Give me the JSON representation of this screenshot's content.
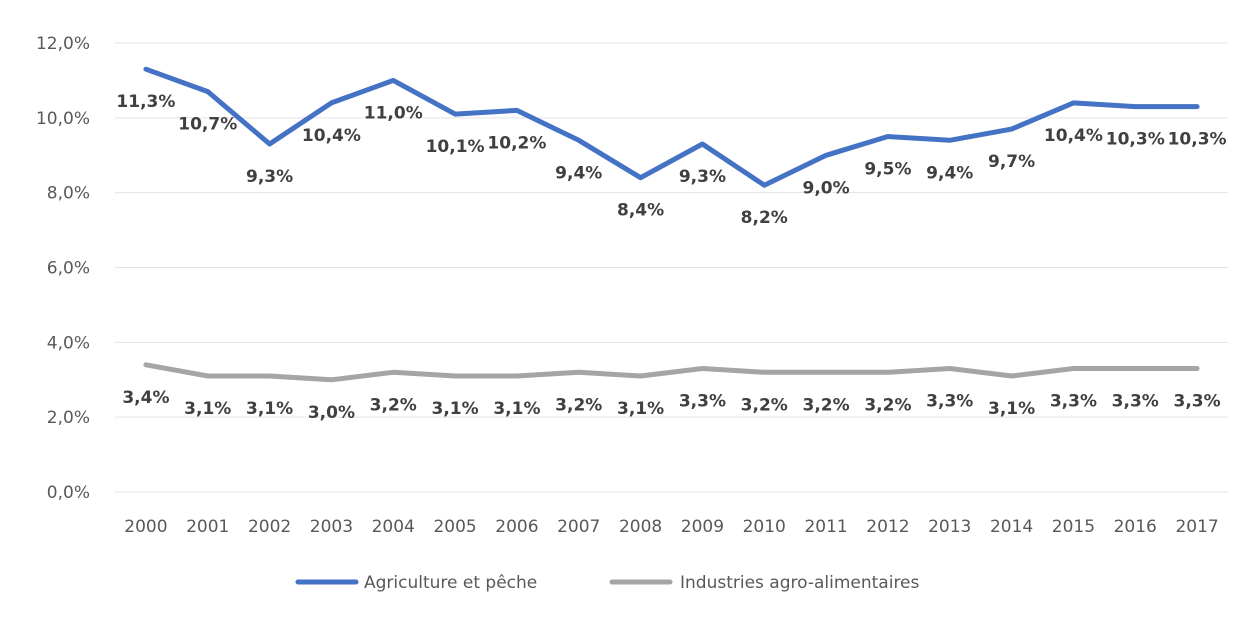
{
  "chart_data": {
    "type": "line",
    "title": "",
    "xlabel": "",
    "ylabel": "",
    "categories": [
      "2000",
      "2001",
      "2002",
      "2003",
      "2004",
      "2005",
      "2006",
      "2007",
      "2008",
      "2009",
      "2010",
      "2011",
      "2012",
      "2013",
      "2014",
      "2015",
      "2016",
      "2017"
    ],
    "ylim": [
      0,
      12
    ],
    "yticks": [
      0,
      2,
      4,
      6,
      8,
      10,
      12
    ],
    "ytick_labels": [
      "0,0%",
      "2,0%",
      "4,0%",
      "6,0%",
      "8,0%",
      "10,0%",
      "12,0%"
    ],
    "grid": true,
    "legend_position": "bottom",
    "series": [
      {
        "name": "Agriculture et pêche",
        "color": "#4472c4",
        "values": [
          11.3,
          10.7,
          9.3,
          10.4,
          11.0,
          10.1,
          10.2,
          9.4,
          8.4,
          9.3,
          8.2,
          9.0,
          9.5,
          9.4,
          9.7,
          10.4,
          10.3,
          10.3
        ],
        "labels": [
          "11,3%",
          "10,7%",
          "9,3%",
          "10,4%",
          "11,0%",
          "10,1%",
          "10,2%",
          "9,4%",
          "8,4%",
          "9,3%",
          "8,2%",
          "9,0%",
          "9,5%",
          "9,4%",
          "9,7%",
          "10,4%",
          "10,3%",
          "10,3%"
        ]
      },
      {
        "name": "Industries agro-alimentaires",
        "color": "#a5a5a5",
        "values": [
          3.4,
          3.1,
          3.1,
          3.0,
          3.2,
          3.1,
          3.1,
          3.2,
          3.1,
          3.3,
          3.2,
          3.2,
          3.2,
          3.3,
          3.1,
          3.3,
          3.3,
          3.3
        ],
        "labels": [
          "3,4%",
          "3,1%",
          "3,1%",
          "3,0%",
          "3,2%",
          "3,1%",
          "3,1%",
          "3,2%",
          "3,1%",
          "3,3%",
          "3,2%",
          "3,2%",
          "3,2%",
          "3,3%",
          "3,1%",
          "3,3%",
          "3,3%",
          "3,3%"
        ]
      }
    ]
  }
}
